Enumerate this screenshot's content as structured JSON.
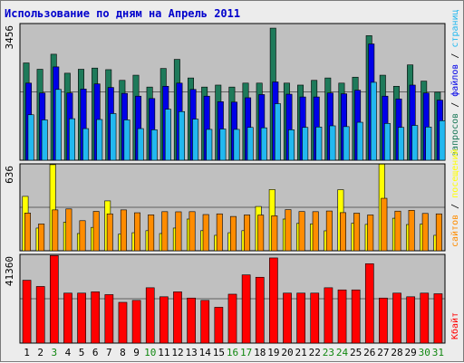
{
  "title": "Использование по дням на Апрель 2011",
  "chart_data": {
    "type": "bar",
    "title": "Использование по дням на Апрель 2011",
    "categories": [
      "1",
      "2",
      "3",
      "4",
      "5",
      "6",
      "7",
      "8",
      "9",
      "10",
      "11",
      "12",
      "13",
      "14",
      "15",
      "16",
      "17",
      "18",
      "19",
      "20",
      "21",
      "22",
      "23",
      "24",
      "25",
      "26",
      "27",
      "28",
      "29",
      "30",
      "31"
    ],
    "weekend_days": [
      "3",
      "10",
      "16",
      "17",
      "23",
      "24",
      "30",
      "31"
    ],
    "colors": {
      "requests": "#1e7a5a",
      "files": "#0000e8",
      "pages": "#22b8f0",
      "visits": "#ffff00",
      "sites": "#ff8c00",
      "kbytes": "#ff0000",
      "title": "#0000cc",
      "weekday_label": "#000000",
      "weekend_label": "#118811"
    },
    "panels": [
      {
        "id": "hits",
        "ymax_label": "3456",
        "ymax": 3456,
        "series": [
          {
            "key": "requests",
            "values": [
              2460,
              2300,
              2680,
              2200,
              2300,
              2330,
              2290,
              2020,
              2150,
              1850,
              2320,
              2550,
              2080,
              1850,
              1900,
              1850,
              1950,
              1950,
              3340,
              1950,
              1900,
              2020,
              2080,
              1950,
              2100,
              3150,
              2150,
              1870,
              2410,
              2000,
              1720
            ]
          },
          {
            "key": "files",
            "values": [
              1950,
              1700,
              2360,
              1700,
              1800,
              1930,
              1840,
              1690,
              1620,
              1560,
              1870,
              1950,
              1790,
              1620,
              1480,
              1470,
              1580,
              1660,
              1980,
              1670,
              1600,
              1600,
              1700,
              1680,
              1770,
              2940,
              1620,
              1550,
              1900,
              1700,
              1520
            ]
          },
          {
            "key": "pages",
            "values": [
              1150,
              1020,
              1790,
              1050,
              800,
              1030,
              1180,
              1020,
              800,
              770,
              1290,
              1230,
              1040,
              780,
              790,
              780,
              830,
              820,
              1430,
              770,
              830,
              840,
              870,
              850,
              960,
              1970,
              930,
              830,
              880,
              840,
              1000
            ]
          }
        ],
        "right_label": [
          {
            "text": "запросов",
            "color": "#1e7a5a"
          },
          {
            "text": " / ",
            "color": "#000000"
          },
          {
            "text": "файлов",
            "color": "#0000e8"
          },
          {
            "text": " / ",
            "color": "#000000"
          },
          {
            "text": "страниц",
            "color": "#22b8f0"
          }
        ]
      },
      {
        "id": "visits",
        "ymax_label": "636",
        "ymax": 636,
        "series": [
          {
            "key": "visits",
            "values": [
              398,
              166,
              630,
              209,
              126,
              171,
              365,
              122,
              132,
              147,
              126,
              166,
              232,
              147,
              113,
              132,
              147,
              324,
              448,
              232,
              200,
              197,
              146,
              447,
              202,
              193,
              634,
              238,
              192,
              195,
              113
            ]
          },
          {
            "key": "sites",
            "values": [
              276,
              196,
              299,
              306,
              220,
              288,
              270,
              299,
              278,
              263,
              286,
              285,
              286,
              265,
              270,
              251,
              262,
              261,
              256,
              301,
              287,
              286,
              291,
              279,
              275,
              262,
              384,
              290,
              296,
              273,
              270
            ]
          }
        ],
        "right_label": [
          {
            "text": "сайтов",
            "color": "#ff8c00"
          },
          {
            "text": " / ",
            "color": "#000000"
          },
          {
            "text": "посещений",
            "color": "#ffff00"
          }
        ]
      },
      {
        "id": "kbytes",
        "ymax_label": "41360",
        "ymax": 41360,
        "series": [
          {
            "key": "kbytes",
            "values": [
              29300,
              26400,
              40800,
              23300,
              23300,
              23900,
              22600,
              19000,
              19900,
              25800,
              21600,
              23900,
              21000,
              19900,
              16700,
              22800,
              31800,
              30700,
              39700,
              23300,
              23300,
              23300,
              25800,
              24800,
              24800,
              37000,
              21000,
              23300,
              21600,
              23300,
              23000
            ]
          }
        ],
        "right_label": [
          {
            "text": "Кбайт",
            "color": "#ff0000"
          }
        ]
      }
    ]
  }
}
